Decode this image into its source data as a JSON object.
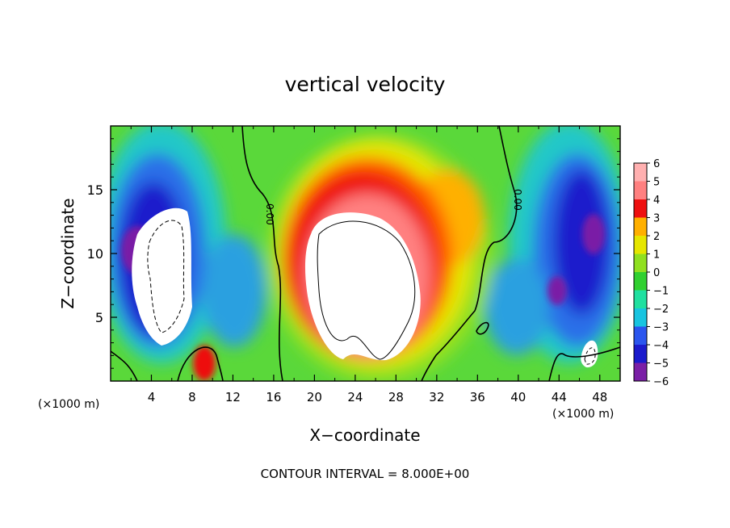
{
  "chart_data": {
    "type": "heatmap",
    "title": "vertical velocity",
    "xlabel": "X−coordinate",
    "ylabel": "Z−coordinate",
    "x_unit_left": "(×1000 m)",
    "x_unit_right": "(×1000 m)",
    "footer": "CONTOUR INTERVAL = 8.000E+00",
    "xlim": [
      0,
      50
    ],
    "ylim": [
      0,
      20
    ],
    "x_ticks": [
      4,
      8,
      12,
      16,
      20,
      24,
      28,
      32,
      36,
      40,
      44,
      48
    ],
    "x_tick_labels": [
      "4",
      "8",
      "12",
      "16",
      "20",
      "24",
      "28",
      "32",
      "36",
      "40",
      "44",
      "48"
    ],
    "y_ticks": [
      5,
      10,
      15
    ],
    "y_tick_labels": [
      "5",
      "10",
      "15"
    ],
    "zero_contour_label": "0.00",
    "colorbar": {
      "levels": [
        -6,
        -5,
        -4,
        -3,
        -2,
        -1,
        0,
        1,
        2,
        3,
        4,
        5,
        6
      ],
      "labels": [
        "6",
        "5",
        "4",
        "3",
        "2",
        "1",
        "0",
        "−1",
        "−2",
        "−3",
        "−4",
        "−5",
        "−6"
      ],
      "colors": [
        "#7a1fa6",
        "#1a1acc",
        "#2a55ee",
        "#1f8fe8",
        "#18c4e0",
        "#20e0a0",
        "#30d030",
        "#90e020",
        "#e6e600",
        "#ffb000",
        "#ff5a00",
        "#ee1010",
        "#ff8080",
        "#ffb0b0"
      ]
    },
    "features": [
      {
        "kind": "updraft-core",
        "x": 24.5,
        "z": 9,
        "value_max": 6
      },
      {
        "kind": "downdraft",
        "x": 5.5,
        "z": 9,
        "value_min": -6
      },
      {
        "kind": "downdraft",
        "x": 46,
        "z": 8,
        "value_min": -6
      }
    ]
  }
}
